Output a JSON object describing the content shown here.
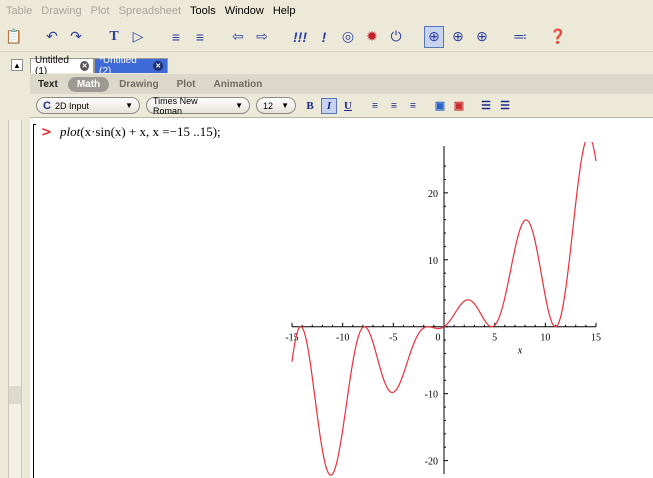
{
  "menubar": {
    "items": [
      {
        "label": "Table",
        "enabled": false
      },
      {
        "label": "Drawing",
        "enabled": false
      },
      {
        "label": "Plot",
        "enabled": false
      },
      {
        "label": "Spreadsheet",
        "enabled": false
      },
      {
        "label": "Tools",
        "enabled": true
      },
      {
        "label": "Window",
        "enabled": true
      },
      {
        "label": "Help",
        "enabled": true
      }
    ]
  },
  "toolbar": {
    "icons": [
      "paste-icon",
      "undo-icon",
      "redo-icon",
      "text-mode-icon",
      "math-prompt-icon",
      "indent-icon",
      "outdent-icon",
      "back-icon",
      "forward-icon",
      "execute-all-icon",
      "execute-icon",
      "stop-icon",
      "debug-icon",
      "restart-icon",
      "zoom-100-icon",
      "zoom-150-icon",
      "zoom-200-icon",
      "show-hide-icon",
      "help-icon"
    ]
  },
  "tabs": [
    {
      "label": "Untitled (1)",
      "active": false
    },
    {
      "label": "*Untitled (2)",
      "active": true
    }
  ],
  "context_tabs": [
    {
      "label": "Text",
      "active": false
    },
    {
      "label": "Math",
      "active": true
    },
    {
      "label": "Drawing",
      "active": false
    },
    {
      "label": "Plot",
      "active": false
    },
    {
      "label": "Animation",
      "active": false
    }
  ],
  "format": {
    "input_mode": "2D Input",
    "font": "Times New Roman",
    "size": "12",
    "bold_label": "B",
    "italic_label": "I",
    "underline_label": "U"
  },
  "worksheet": {
    "prompt": ">",
    "command_fn": "plot",
    "command_rest": "(x·sin(x) + x, x =−15 ..15);"
  },
  "chart_data": {
    "type": "line",
    "function": "x*sin(x) + x",
    "xlabel": "x",
    "xlim": [
      -15,
      15
    ],
    "ylim": [
      -22,
      27
    ],
    "x_ticks": [
      "-15",
      "-10",
      "-5",
      "0",
      "5",
      "10",
      "15"
    ],
    "y_ticks": [
      "20",
      "10",
      "-10",
      "-20"
    ],
    "x_tick_values": [
      -15,
      -10,
      -5,
      0,
      5,
      10,
      15
    ],
    "y_tick_values": [
      20,
      10,
      -10,
      -20
    ],
    "line_color": "#e8303a",
    "grid": false
  }
}
